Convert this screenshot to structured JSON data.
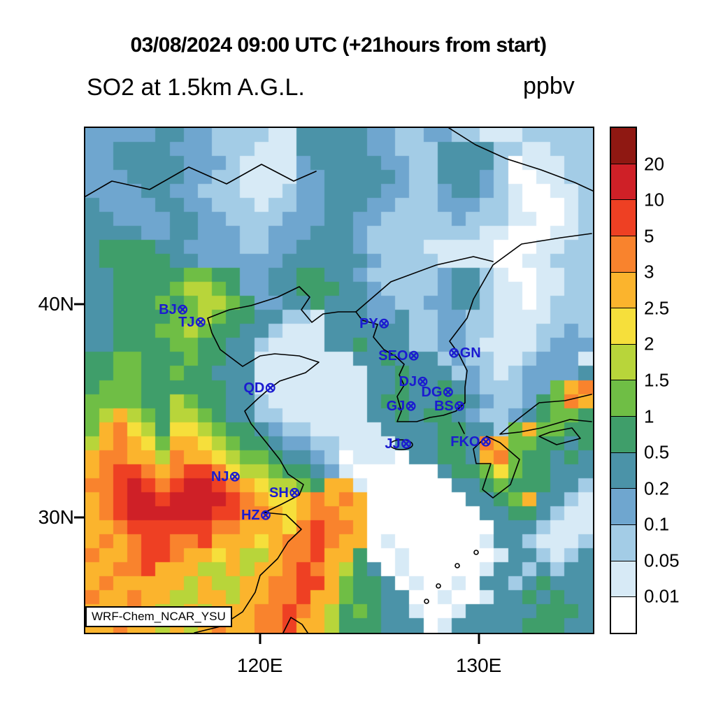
{
  "header": {
    "title": "03/08/2024 09:00 UTC (+21hours from start)",
    "subtitle_left": "SO2 at 1.5km A.G.L.",
    "subtitle_right": "ppbv"
  },
  "colors": {
    "station": "#1b1bd0",
    "frame": "#000000",
    "background": "#ffffff"
  },
  "map": {
    "credit": "WRF-Chem_NCAR_YSU",
    "y_ticks": [
      {
        "label": "40N",
        "pct": 34.9
      },
      {
        "label": "30N",
        "pct": 77.1
      }
    ],
    "x_ticks": [
      {
        "label": "120E",
        "pct": 34.4
      },
      {
        "label": "130E",
        "pct": 77.5
      }
    ]
  },
  "chart_data": {
    "type": "heatmap",
    "title": "03/08/2024 09:00 UTC (+21hours from start)",
    "subtitle": "SO2 at 1.5km A.G.L.",
    "units": "ppbv",
    "model_label": "WRF-Chem_NCAR_YSU",
    "valid_time": "03/08/2024 09:00 UTC",
    "forecast_offset": "+21hours from start",
    "x_axis": {
      "tick_labels": [
        "120E",
        "130E"
      ],
      "lon_range": [
        112.0,
        135.3
      ]
    },
    "y_axis": {
      "tick_labels": [
        "40N",
        "30N"
      ],
      "lat_range": [
        24.6,
        48.5
      ]
    },
    "legend_position": "right",
    "levels": [
      0.01,
      0.05,
      0.1,
      0.2,
      0.5,
      1,
      1.5,
      2,
      2.5,
      3,
      5,
      10,
      20
    ],
    "colorbar_labels": [
      "20",
      "10",
      "5",
      "3",
      "2.5",
      "2",
      "1.5",
      "1",
      "0.5",
      "0.2",
      "0.1",
      "0.05",
      "0.01"
    ],
    "palette": [
      "#ffffff",
      "#d7eaf6",
      "#a3cce6",
      "#6fa6cf",
      "#4b93a8",
      "#3f9e6a",
      "#6fbe45",
      "#b8d53a",
      "#f6df3b",
      "#fbb42d",
      "#f9832d",
      "#ee4023",
      "#cf2027",
      "#8f1812"
    ],
    "grid_keys": "0123456789abcd",
    "grid_encoding": "36x36 cells, top row first; each char indexes palette via grid_keys (approximate SO2 ppbv bins)",
    "grid": [
      "333334433222211444443322332211122222",
      "334444333222111444443322244442211222",
      "334444433321111344444332244442011122",
      "333444433221111334444432244432001122",
      "333344332221112334444332234432100112",
      "433334433222122334443322233322100012",
      "443333443322223334433222223222110012",
      "444433443332233344432222222211000112",
      "455554433332233444432222111110001122",
      "455555443333334444443222211110011222",
      "445555566553344554432222234421001122",
      "445555677653344555443222234421101122",
      "445556567765334454443322334421101222",
      "445555667655442214443342233221111222",
      "445556676554421114444442233221112232",
      "445555665544211114454442233211112333",
      "556655565544111111144544423221123331",
      "556655655444111111114454442321233334",
      "56665555554411111111445445432223369a",
      "6666557655442111111145544554322356a9",
      "679765776544221111114454554322345665",
      "69a875887655432211111444455442696655",
      "79a9869987655433221111444554a9665545",
      "9aa997a9987665443201110445549a655454",
      "9abba9abba87765543100000045568655444",
      "aabcbabccba9877659910000004456555442",
      "9abccbccccba9889a9a90000000445694421",
      "9abccccccbbaa989aa990000000044554211",
      "99abbbbbbaa9998abaa90000000004442111",
      "9a9abbaab99989aaba990100000014421112",
      "a99abba9989779aab9950010000001442124",
      "99aab999779799aba9754010000014424244",
      "9a99999797799aabb9655401001044245444",
      "a99a997799799aab99655440010014454544",
      "999a97797999aaba97565441001444445554",
      "99a997979a99aab997555444014444455544"
    ],
    "stations": [
      {
        "id": "BJ",
        "text": "BJ⊗",
        "x": 17.4,
        "y": 36.0
      },
      {
        "id": "TJ",
        "text": "TJ⊗",
        "x": 21.1,
        "y": 38.5
      },
      {
        "id": "PY",
        "text": "PY⊗",
        "x": 57.0,
        "y": 38.8
      },
      {
        "id": "SEO",
        "text": "SEO⊗",
        "x": 61.8,
        "y": 45.2
      },
      {
        "id": "GN",
        "text": "⊗GN",
        "x": 74.7,
        "y": 44.6
      },
      {
        "id": "DJ",
        "text": "DJ⊗",
        "x": 64.7,
        "y": 50.3
      },
      {
        "id": "DG",
        "text": "DG⊗",
        "x": 69.4,
        "y": 52.4
      },
      {
        "id": "QD",
        "text": "QD⊗",
        "x": 34.4,
        "y": 51.5
      },
      {
        "id": "GJ",
        "text": "GJ⊗",
        "x": 62.3,
        "y": 55.1
      },
      {
        "id": "BS",
        "text": "BS⊗",
        "x": 71.8,
        "y": 55.1
      },
      {
        "id": "JJ",
        "text": "JJ⊗",
        "x": 61.7,
        "y": 62.6
      },
      {
        "id": "FKO",
        "text": "FKO⊗",
        "x": 76.0,
        "y": 62.2
      },
      {
        "id": "NJ",
        "text": "NJ⊗",
        "x": 27.7,
        "y": 69.1
      },
      {
        "id": "SH",
        "text": "SH⊗",
        "x": 39.3,
        "y": 72.3
      },
      {
        "id": "HZ",
        "text": "HZ⊗",
        "x": 33.7,
        "y": 76.7
      }
    ]
  }
}
